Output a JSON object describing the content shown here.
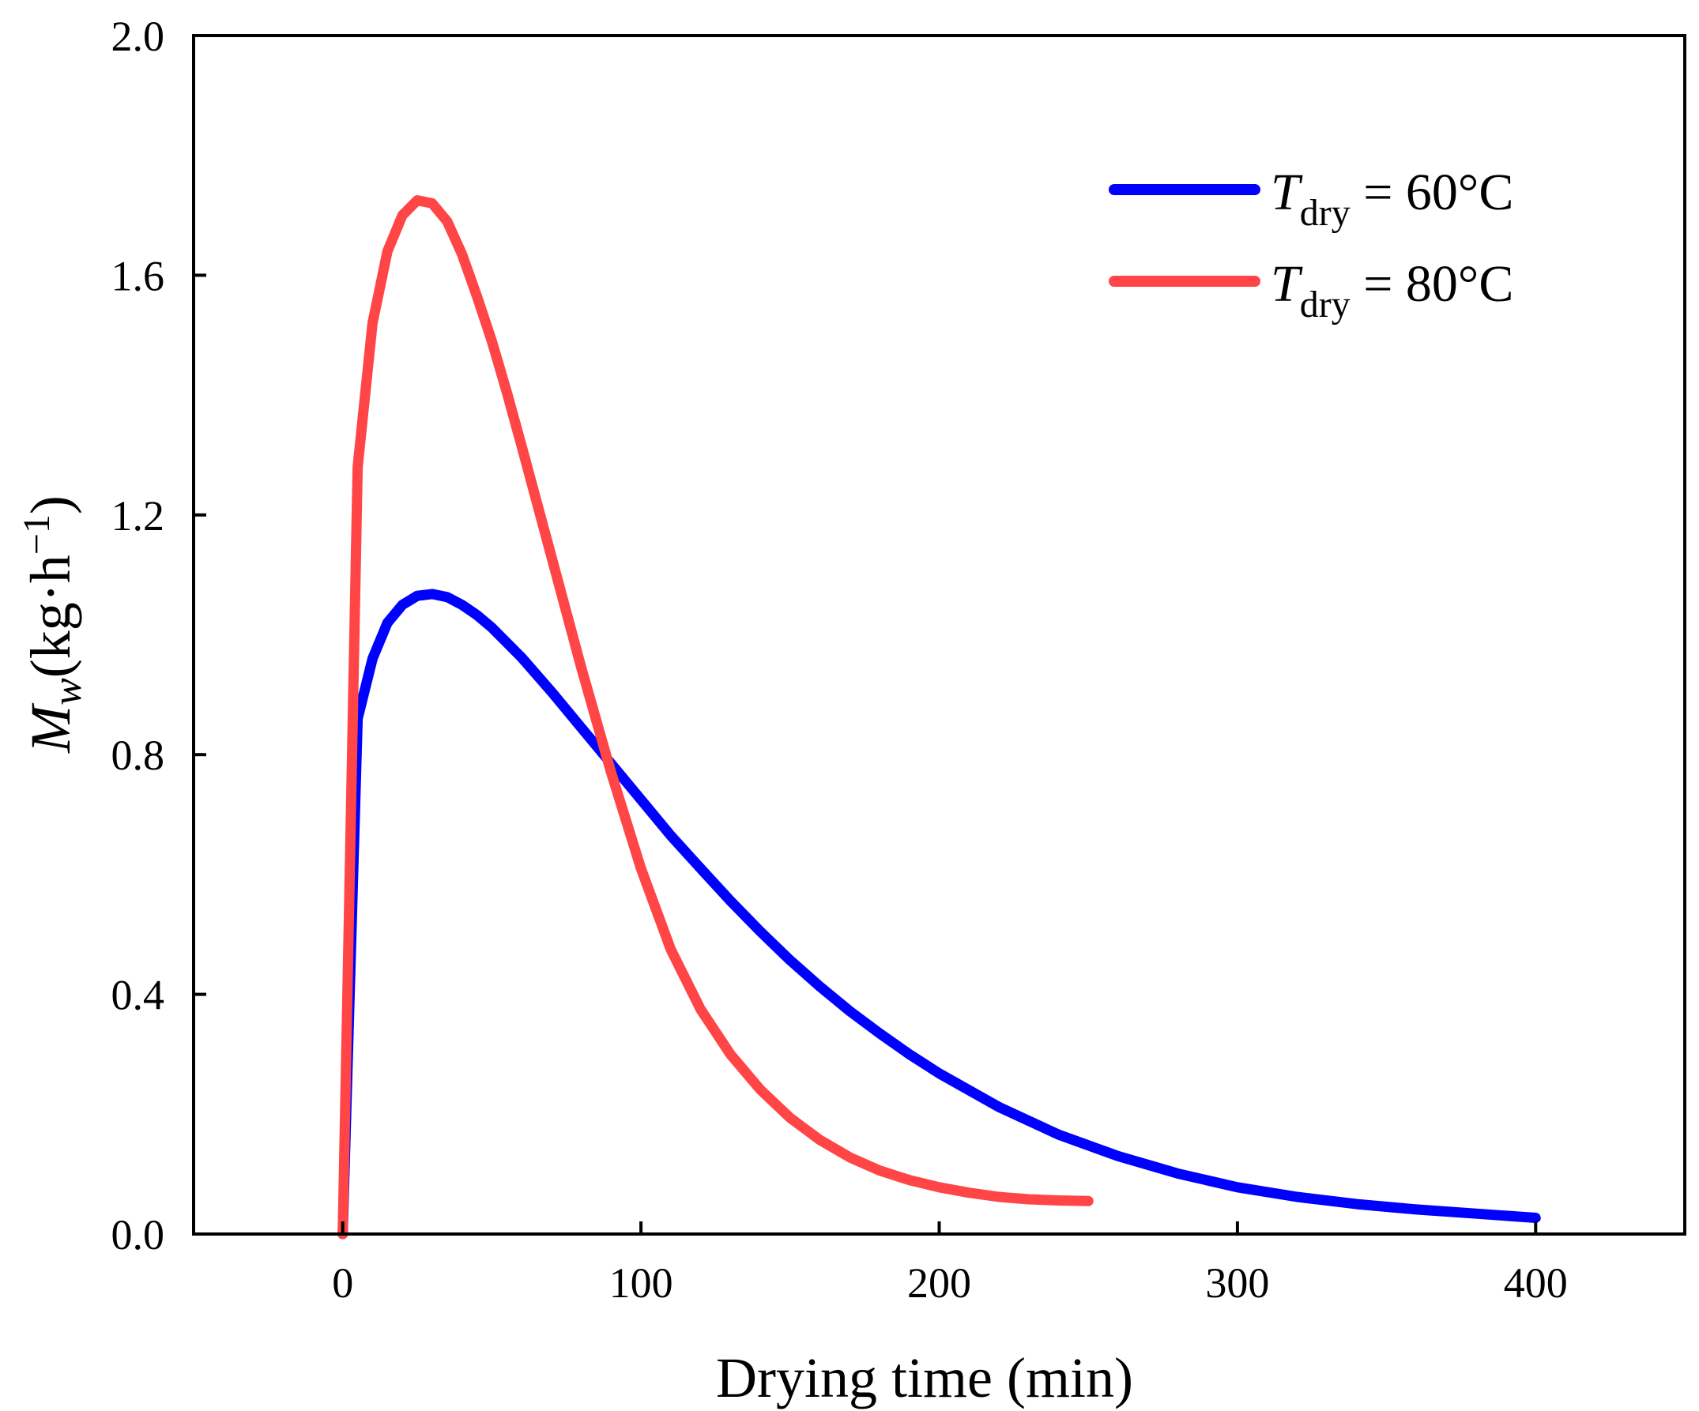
{
  "chart_data": {
    "type": "line",
    "xlabel": "Drying time (min)",
    "ylabel": {
      "symbol": "M",
      "subscript": "w",
      "units": "(kg·h",
      "sup": "−1",
      "close": ")"
    },
    "xlim": [
      -50,
      450
    ],
    "ylim": [
      0.0,
      2.0
    ],
    "x_ticks": [
      0,
      100,
      200,
      300,
      400
    ],
    "x_tick_labels": [
      "0",
      "100",
      "200",
      "300",
      "400"
    ],
    "y_ticks": [
      0.0,
      0.4,
      0.8,
      1.2,
      1.6,
      2.0
    ],
    "y_tick_labels": [
      "0.0",
      "0.4",
      "0.8",
      "1.2",
      "1.6",
      "2.0"
    ],
    "grid": false,
    "legend_position": "top-right",
    "series": [
      {
        "name": "T_dry = 60°C",
        "legend": {
          "symbol": "T",
          "subscript": "dry",
          "rest": " = 60°C"
        },
        "color": "#0000ff",
        "x": [
          0,
          5,
          10,
          15,
          20,
          25,
          30,
          35,
          40,
          45,
          50,
          60,
          70,
          80,
          90,
          100,
          110,
          120,
          130,
          140,
          150,
          160,
          170,
          180,
          190,
          200,
          220,
          240,
          260,
          280,
          300,
          320,
          340,
          360,
          380,
          400
        ],
        "y": [
          0.0,
          0.86,
          0.96,
          1.02,
          1.05,
          1.065,
          1.068,
          1.063,
          1.05,
          1.033,
          1.012,
          0.962,
          0.905,
          0.845,
          0.785,
          0.725,
          0.665,
          0.61,
          0.556,
          0.505,
          0.457,
          0.413,
          0.372,
          0.335,
          0.3,
          0.268,
          0.212,
          0.166,
          0.13,
          0.101,
          0.078,
          0.062,
          0.05,
          0.041,
          0.034,
          0.027
        ]
      },
      {
        "name": "T_dry = 80°C",
        "legend": {
          "symbol": "T",
          "subscript": "dry",
          "rest": " = 80°C"
        },
        "color": "#ff4545",
        "x": [
          0,
          5,
          10,
          15,
          20,
          25,
          30,
          35,
          40,
          45,
          50,
          55,
          60,
          70,
          80,
          90,
          100,
          110,
          120,
          130,
          140,
          150,
          160,
          170,
          180,
          190,
          200,
          210,
          220,
          230,
          240,
          250
        ],
        "y": [
          0.0,
          1.28,
          1.52,
          1.64,
          1.7,
          1.725,
          1.72,
          1.69,
          1.635,
          1.565,
          1.49,
          1.405,
          1.315,
          1.13,
          0.945,
          0.77,
          0.61,
          0.475,
          0.375,
          0.3,
          0.241,
          0.194,
          0.157,
          0.128,
          0.106,
          0.09,
          0.078,
          0.069,
          0.062,
          0.058,
          0.056,
          0.055
        ]
      }
    ]
  }
}
